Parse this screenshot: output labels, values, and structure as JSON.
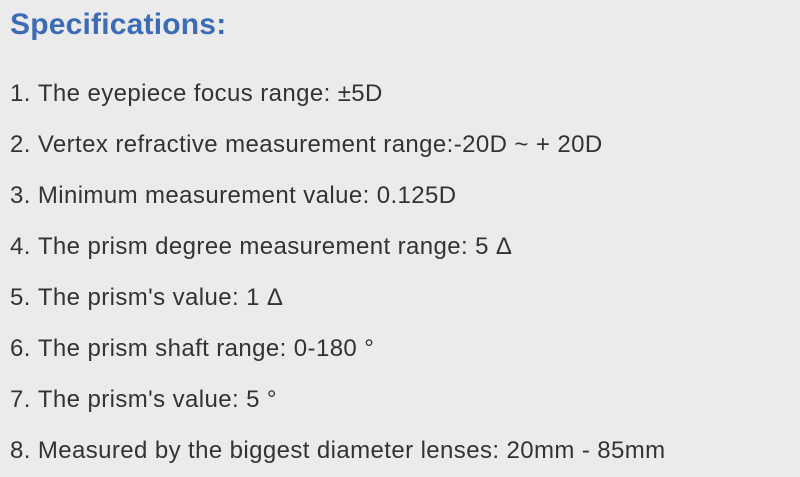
{
  "page": {
    "title": "Specifications:",
    "background_color": "#ebebeb",
    "title_color": "#3c6cb7",
    "text_color": "#333333"
  },
  "specifications": {
    "items": [
      {
        "num": "1.",
        "text": "The eyepiece focus range: ±5D"
      },
      {
        "num": "2.",
        "text": "Vertex refractive measurement range:-20D ~ + 20D"
      },
      {
        "num": "3.",
        "text": "Minimum measurement value: 0.125D"
      },
      {
        "num": "4.",
        "text": "The prism degree measurement range: 5 Δ"
      },
      {
        "num": "5.",
        "text": "The prism's value: 1 Δ"
      },
      {
        "num": "6.",
        "text": "The prism shaft range: 0-180 °"
      },
      {
        "num": "7.",
        "text": "The prism's value: 5 °"
      },
      {
        "num": "8.",
        "text": "Measured by the biggest diameter lenses: 20mm - 85mm"
      }
    ]
  }
}
